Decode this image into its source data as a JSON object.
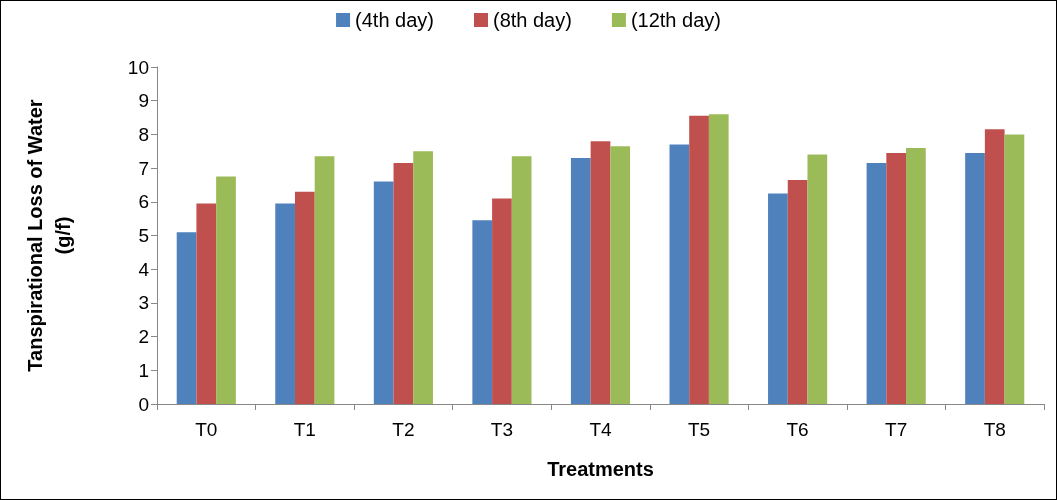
{
  "chart_data": {
    "type": "bar",
    "xlabel": "Treatments",
    "ylabel": "Tanspirational Loss of Water\n(g/f)",
    "categories": [
      "T0",
      "T1",
      "T2",
      "T3",
      "T4",
      "T5",
      "T6",
      "T7",
      "T8"
    ],
    "series": [
      {
        "name": "(4th day)",
        "color": "#4f81bd",
        "values": [
          5.1,
          5.95,
          6.6,
          5.45,
          7.3,
          7.7,
          6.25,
          7.15,
          7.45
        ]
      },
      {
        "name": "(8th day)",
        "color": "#c0504d",
        "values": [
          5.95,
          6.3,
          7.15,
          6.1,
          7.8,
          8.55,
          6.65,
          7.45,
          8.15
        ]
      },
      {
        "name": "(12th day)",
        "color": "#9bbb59",
        "values": [
          6.75,
          7.35,
          7.5,
          7.35,
          7.65,
          8.6,
          7.4,
          7.6,
          8.0
        ]
      }
    ],
    "ylim": [
      0,
      10
    ],
    "yticks": [
      0,
      1,
      2,
      3,
      4,
      5,
      6,
      7,
      8,
      9,
      10
    ],
    "grid": false,
    "legend": "top"
  }
}
